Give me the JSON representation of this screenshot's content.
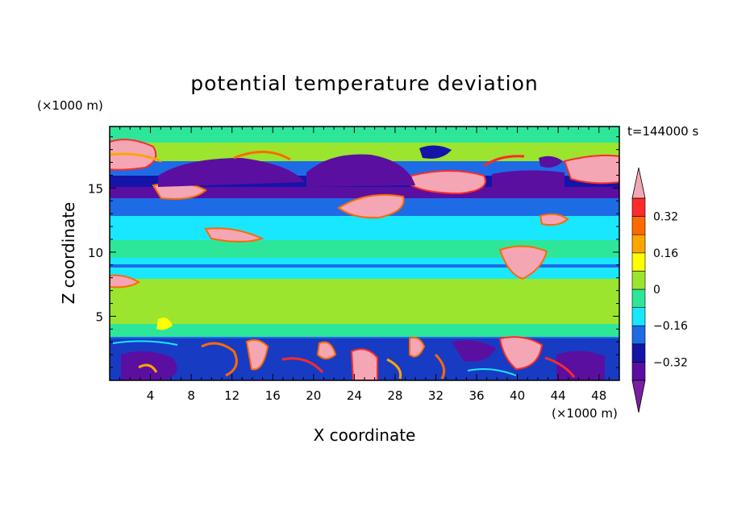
{
  "chart_data": {
    "type": "heatmap",
    "title": "potential temperature deviation",
    "time_label": "t=144000 s",
    "xlabel": "X coordinate",
    "ylabel": "Z coordinate",
    "x_unit": "(×1000 m)",
    "y_unit": "(×1000 m)",
    "xlim": [
      0,
      50
    ],
    "ylim": [
      0,
      19.8
    ],
    "x_ticks": [
      4,
      8,
      12,
      16,
      20,
      24,
      28,
      32,
      36,
      40,
      44,
      48
    ],
    "y_ticks": [
      5,
      10,
      15
    ],
    "colorbar": {
      "levels": [
        -0.4,
        -0.32,
        -0.24,
        -0.16,
        -0.08,
        0,
        0.08,
        0.16,
        0.24,
        0.32,
        0.4
      ],
      "labels": [
        "0.32",
        "0.16",
        "0",
        "−0.16",
        "−0.32"
      ],
      "label_values": [
        0.32,
        0.16,
        0,
        -0.16,
        -0.32
      ],
      "colors": {
        "below": "#7a1fa2",
        "bands": [
          "#5a0fa0",
          "#1414a8",
          "#1e6be6",
          "#19e6ff",
          "#2ee69a",
          "#9be52e",
          "#ffff00",
          "#ffa500",
          "#ff6a00",
          "#ff2a2a"
        ],
        "above": "#f4a6b4"
      }
    }
  }
}
